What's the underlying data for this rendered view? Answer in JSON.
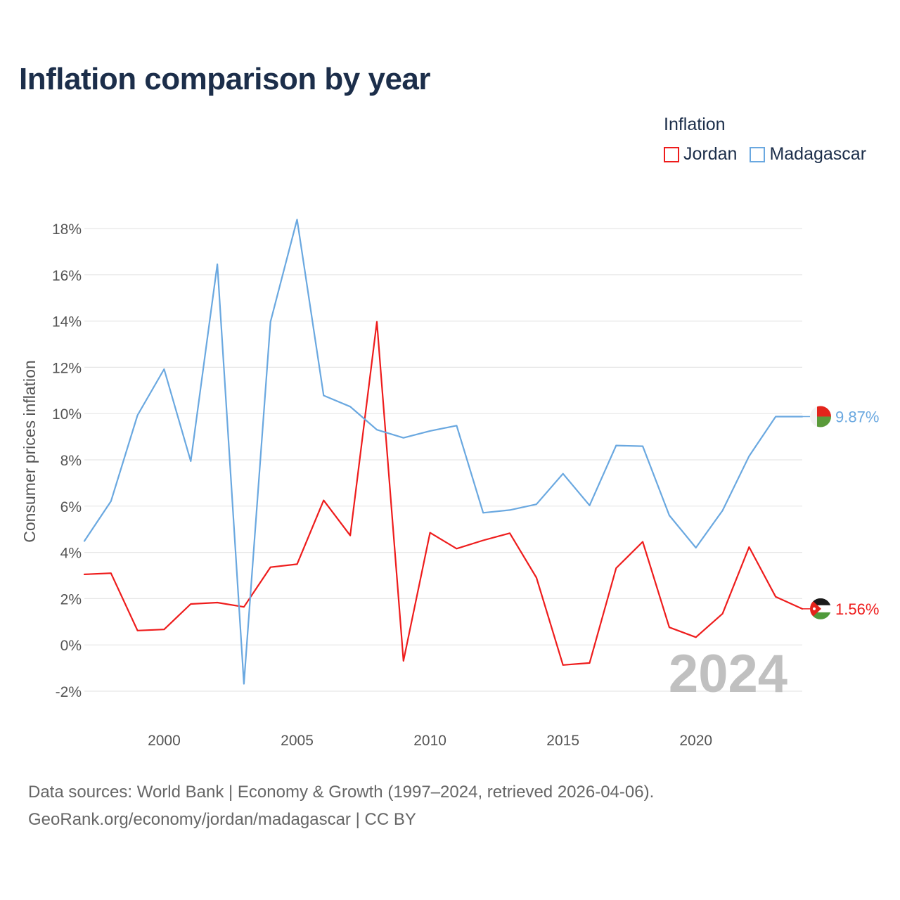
{
  "title": "Inflation comparison by year",
  "legend": {
    "title": "Inflation",
    "items": [
      {
        "label": "Jordan",
        "color": "#ee1c1c"
      },
      {
        "label": "Madagascar",
        "color": "#6aa8e0"
      }
    ]
  },
  "footer": {
    "line1": "Data sources: World Bank | Economy & Growth (1997–2024, retrieved 2026-04-06).",
    "line2": "GeoRank.org/economy/jordan/madagascar | CC BY"
  },
  "chart_data": {
    "type": "line",
    "title": "Inflation comparison by year",
    "xlabel": "",
    "ylabel": "Consumer prices inflation",
    "xlim": [
      1997,
      2024
    ],
    "ylim": [
      -2,
      18
    ],
    "x_ticks": [
      2000,
      2005,
      2010,
      2015,
      2020
    ],
    "x_tick_labels": [
      "2000",
      "2005",
      "2010",
      "2015",
      "2020"
    ],
    "y_ticks": [
      -2,
      0,
      2,
      4,
      6,
      8,
      10,
      12,
      14,
      16,
      18
    ],
    "y_tick_labels": [
      "-2%",
      "0%",
      "2%",
      "4%",
      "6%",
      "8%",
      "10%",
      "12%",
      "14%",
      "16%",
      "18%"
    ],
    "grid": true,
    "year_overlay": "2024",
    "x": [
      1997,
      1998,
      1999,
      2000,
      2001,
      2002,
      2003,
      2004,
      2005,
      2006,
      2007,
      2008,
      2009,
      2010,
      2011,
      2012,
      2013,
      2014,
      2015,
      2016,
      2017,
      2018,
      2019,
      2020,
      2021,
      2022,
      2023,
      2024
    ],
    "series": [
      {
        "name": "Jordan",
        "color": "#ee1c1c",
        "end_label": "1.56%",
        "values": [
          3.05,
          3.1,
          0.62,
          0.67,
          1.77,
          1.83,
          1.64,
          3.36,
          3.49,
          6.25,
          4.73,
          13.97,
          -0.69,
          4.85,
          4.16,
          4.52,
          4.83,
          2.91,
          -0.87,
          -0.78,
          3.32,
          4.46,
          0.76,
          0.33,
          1.35,
          4.23,
          2.08,
          1.56
        ]
      },
      {
        "name": "Madagascar",
        "color": "#6aa8e0",
        "end_label": "9.87%",
        "values": [
          4.49,
          6.21,
          9.93,
          11.92,
          7.94,
          16.46,
          -1.68,
          13.97,
          18.39,
          10.78,
          10.3,
          9.3,
          8.95,
          9.25,
          9.48,
          5.71,
          5.83,
          6.08,
          7.4,
          6.03,
          8.62,
          8.59,
          5.6,
          4.2,
          5.81,
          8.16,
          9.87,
          9.87
        ]
      }
    ]
  }
}
